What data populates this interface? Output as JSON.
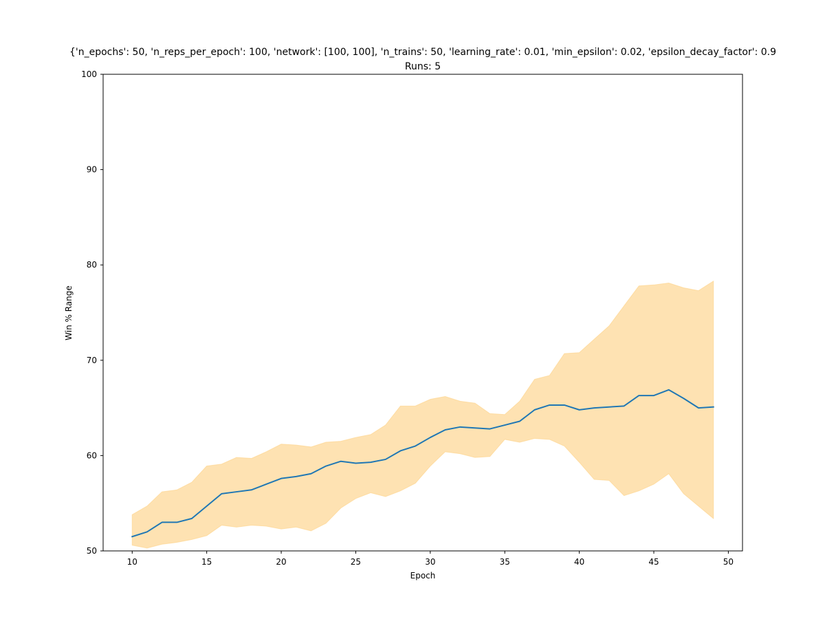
{
  "chart_data": {
    "type": "line",
    "title": "{'n_epochs': 50, 'n_reps_per_epoch': 100, 'network': [100, 100], 'n_trains': 50, 'learning_rate': 0.01, 'min_epsilon': 0.02, 'epsilon_decay_factor': 0.9",
    "subtitle": "Runs: 5",
    "xlabel": "Epoch",
    "ylabel": "Win % Range",
    "xlim": [
      8.05,
      50.95
    ],
    "ylim": [
      50,
      100
    ],
    "x_ticks": [
      10,
      15,
      20,
      25,
      30,
      35,
      40,
      45,
      50
    ],
    "y_ticks": [
      50,
      60,
      70,
      80,
      90,
      100
    ],
    "grid": false,
    "x": [
      10,
      11,
      12,
      13,
      14,
      15,
      16,
      17,
      18,
      19,
      20,
      21,
      22,
      23,
      24,
      25,
      26,
      27,
      28,
      29,
      30,
      31,
      32,
      33,
      34,
      35,
      36,
      37,
      38,
      39,
      40,
      41,
      42,
      43,
      44,
      45,
      46,
      47,
      48,
      49
    ],
    "series": [
      {
        "kind": "line",
        "color": "#1f77b4",
        "values": [
          51.5,
          52.0,
          53.0,
          53.0,
          53.4,
          54.7,
          56.0,
          56.2,
          56.4,
          57.0,
          57.6,
          57.8,
          58.1,
          58.9,
          59.4,
          59.2,
          59.3,
          59.6,
          60.5,
          61.0,
          61.9,
          62.7,
          63.0,
          62.9,
          62.8,
          63.2,
          63.6,
          64.8,
          65.3,
          65.3,
          64.8,
          65.0,
          65.1,
          65.2,
          66.3,
          66.3,
          66.9,
          66.0,
          65.0,
          65.1
        ]
      },
      {
        "kind": "band",
        "color": "#fdd48d",
        "opacity": 0.68,
        "lower": [
          50.6,
          50.3,
          50.7,
          50.9,
          51.2,
          51.6,
          52.7,
          52.5,
          52.7,
          52.6,
          52.3,
          52.5,
          52.1,
          52.9,
          54.5,
          55.5,
          56.1,
          55.7,
          56.3,
          57.1,
          58.9,
          60.4,
          60.2,
          59.8,
          59.9,
          61.7,
          61.4,
          61.8,
          61.7,
          61.0,
          59.3,
          57.5,
          57.4,
          55.8,
          56.3,
          57.0,
          58.1,
          56.0,
          54.7,
          53.4
        ],
        "upper": [
          53.8,
          54.7,
          56.2,
          56.4,
          57.2,
          58.9,
          59.1,
          59.8,
          59.7,
          60.4,
          61.2,
          61.1,
          60.9,
          61.4,
          61.5,
          61.9,
          62.2,
          63.2,
          65.2,
          65.2,
          65.9,
          66.2,
          65.7,
          65.5,
          64.4,
          64.3,
          65.7,
          68.0,
          68.4,
          70.7,
          70.8,
          72.2,
          73.6,
          75.7,
          77.8,
          77.9,
          78.1,
          77.6,
          77.3,
          78.3
        ]
      }
    ]
  }
}
